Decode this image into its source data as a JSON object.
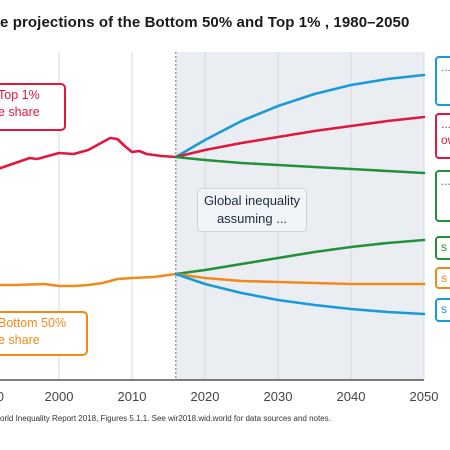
{
  "title": "e projections of the Bottom 50% and Top 1% , 1980–2050",
  "note": "orld Inequality Report 2018, Figures 5.1.1. See wir2018.wid.world  for data sources and notes.",
  "labels": {
    "top1": [
      "Top 1%",
      "e share"
    ],
    "bottom50": [
      "Bottom 50%",
      "e share"
    ],
    "global": [
      "Global inequality",
      "assuming ..."
    ]
  },
  "side_labels": [
    {
      "text": "...",
      "color": "#1a9ad8"
    },
    {
      "text": "...\now",
      "color": "#e0183e"
    },
    {
      "text": "...",
      "color": "#23913a"
    },
    {
      "text": "s",
      "color": "#23913a"
    },
    {
      "text": "s",
      "color": "#f08a1a"
    },
    {
      "text": "s",
      "color": "#1a9ad8"
    }
  ],
  "chart_data": {
    "type": "line",
    "x_ticks": [
      "2000",
      "2010",
      "2020",
      "2030",
      "2040",
      "2050"
    ],
    "partial_x_tick": "0",
    "x_range": [
      1987,
      2050
    ],
    "projection_start": 2016,
    "colors": {
      "top1": "#e0183e",
      "bottom50": "#f08a1a",
      "blue": "#1a9ad8",
      "green": "#23913a"
    },
    "series": [
      {
        "key": "top1_hist",
        "color": "#e0183e",
        "x": [
          1987,
          1988,
          1990,
          1992,
          1994,
          1996,
          1997,
          1998,
          2000,
          2002,
          2004,
          2005,
          2006,
          2007,
          2008,
          2009,
          2010,
          2011,
          2012,
          2014,
          2016
        ],
        "y": [
          180,
          178,
          173,
          168,
          163,
          158,
          159,
          157,
          153,
          154,
          150,
          146,
          142,
          138,
          139,
          146,
          152,
          151,
          154,
          156,
          157
        ]
      },
      {
        "key": "bottom50_hist",
        "color": "#f08a1a",
        "x": [
          1987,
          1990,
          1994,
          1998,
          2000,
          2002,
          2004,
          2006,
          2008,
          2010,
          2013,
          2016
        ],
        "y": [
          285,
          285,
          285,
          284,
          286,
          286,
          285,
          283,
          279,
          278,
          277,
          274
        ]
      },
      {
        "key": "proj_blue_top",
        "color": "#1a9ad8",
        "x": [
          2016,
          2020,
          2025,
          2030,
          2035,
          2040,
          2045,
          2050
        ],
        "y": [
          157,
          140,
          121,
          106,
          94,
          85,
          79,
          75
        ]
      },
      {
        "key": "proj_red",
        "color": "#e0183e",
        "x": [
          2016,
          2020,
          2025,
          2030,
          2035,
          2040,
          2045,
          2050
        ],
        "y": [
          157,
          150,
          143,
          137,
          131,
          126,
          121,
          117
        ]
      },
      {
        "key": "proj_green_top",
        "color": "#23913a",
        "x": [
          2016,
          2020,
          2025,
          2030,
          2035,
          2040,
          2045,
          2050
        ],
        "y": [
          157,
          160,
          163,
          165,
          167,
          169,
          171,
          173
        ]
      },
      {
        "key": "proj_green_bottom",
        "color": "#23913a",
        "x": [
          2016,
          2020,
          2025,
          2030,
          2035,
          2040,
          2045,
          2050
        ],
        "y": [
          274,
          270,
          264,
          258,
          252,
          247,
          243,
          240
        ]
      },
      {
        "key": "proj_orange",
        "color": "#f08a1a",
        "x": [
          2016,
          2020,
          2025,
          2030,
          2035,
          2040,
          2045,
          2050
        ],
        "y": [
          274,
          278,
          281,
          282,
          283,
          284,
          284,
          284
        ]
      },
      {
        "key": "proj_blue_bottom",
        "color": "#1a9ad8",
        "x": [
          2016,
          2020,
          2025,
          2030,
          2035,
          2040,
          2045,
          2050
        ],
        "y": [
          274,
          284,
          293,
          300,
          305,
          309,
          312,
          314
        ]
      }
    ]
  }
}
